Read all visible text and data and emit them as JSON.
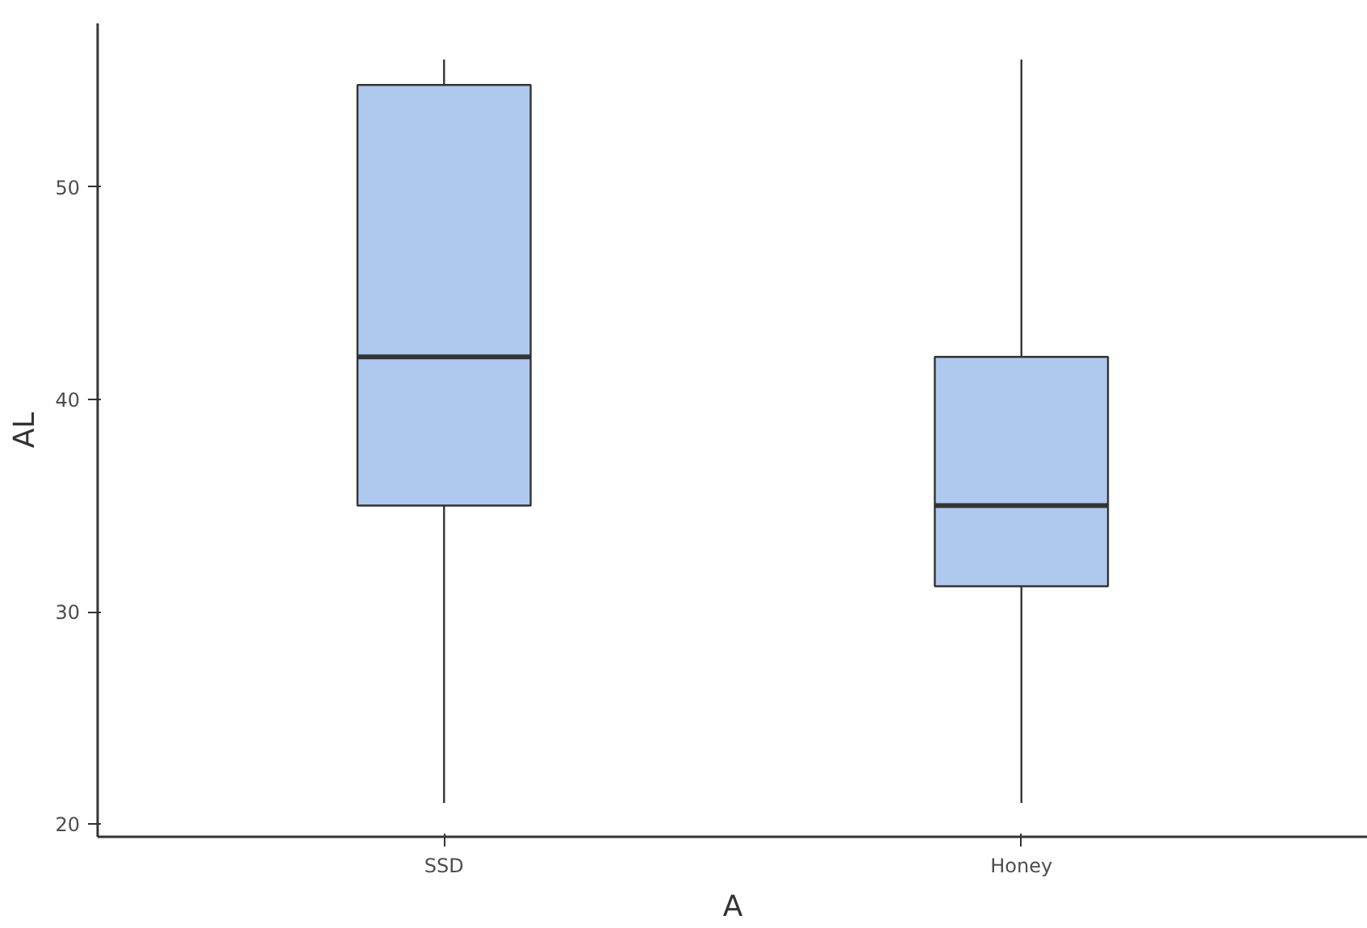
{
  "chart_data": {
    "type": "box",
    "xlabel": "A",
    "ylabel": "AL",
    "categories": [
      "SSD",
      "Honey"
    ],
    "boxes": [
      {
        "low": 21,
        "q1": 35,
        "median": 42,
        "q3": 54.8,
        "high": 56
      },
      {
        "low": 21,
        "q1": 31.2,
        "median": 35,
        "q3": 42,
        "high": 56
      }
    ],
    "color": "#aec8f0",
    "ylim": [
      19.4,
      57.7
    ],
    "yticks": [
      20,
      30,
      40,
      50
    ],
    "grid": false
  }
}
